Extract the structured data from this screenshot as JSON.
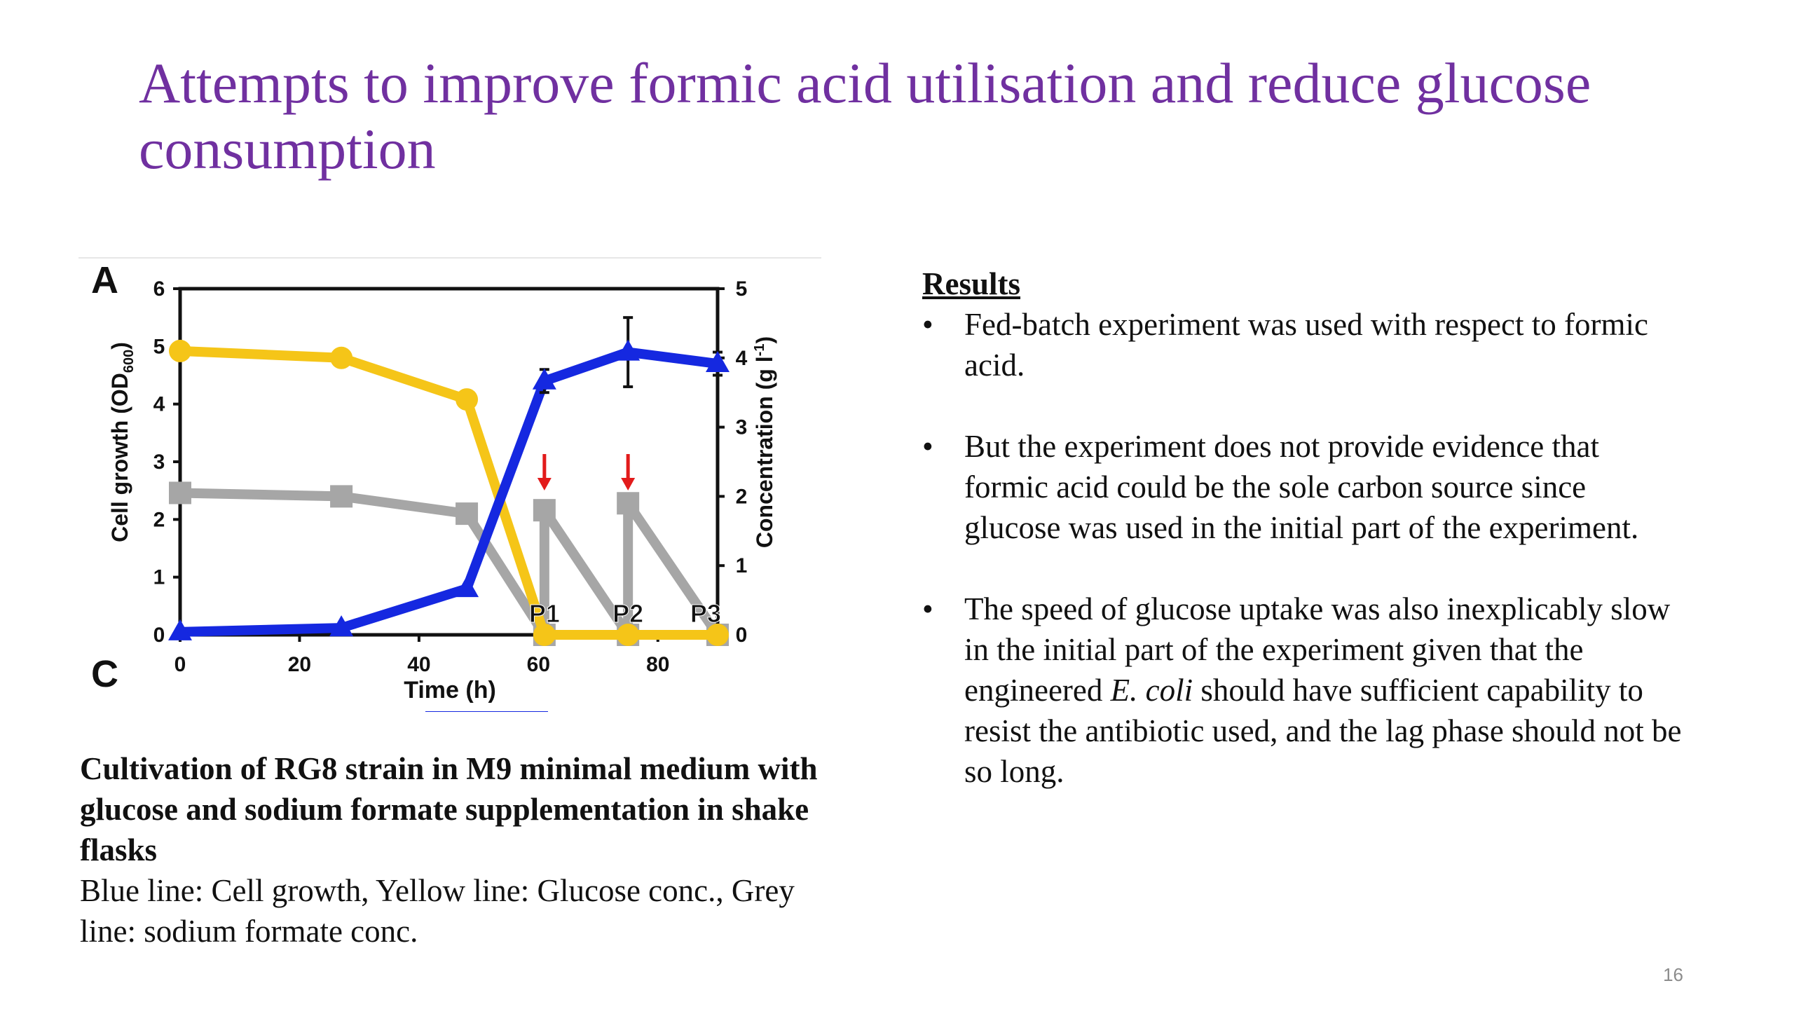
{
  "slide": {
    "title": "Attempts to improve formic acid utilisation and reduce glucose consumption",
    "page_number": "16"
  },
  "caption": {
    "bold": "Cultivation of RG8 strain in M9 minimal medium with glucose and sodium formate supplementation in shake flasks",
    "normal": "Blue line: Cell growth, Yellow line: Glucose conc., Grey line: sodium formate conc."
  },
  "results": {
    "heading": "Results",
    "bullets": [
      "Fed-batch experiment was used with respect to formic acid.",
      "But the experiment does not provide evidence that formic acid could be the sole carbon source since glucose was used in the initial part of the experiment.",
      ""
    ],
    "bullet3": {
      "before": "The speed of glucose uptake was also inexplicably slow in the initial part of the experiment given that the engineered ",
      "italic": "E. coli",
      "after": " should have sufficient capability to resist the antibiotic used, and the lag phase should not be so long."
    }
  },
  "chart_data": {
    "type": "line",
    "panel_labels": [
      "A",
      "C"
    ],
    "xlabel": "Time (h)",
    "ylabel_left": "Cell growth (OD600)",
    "ylabel_right": "Concentration (g l-1)",
    "xlim": [
      0,
      90
    ],
    "ylim_left": [
      0,
      6
    ],
    "ylim_right": [
      0,
      5
    ],
    "x_ticks": [
      "0",
      "20",
      "40",
      "60",
      "80"
    ],
    "y_ticks_left": [
      "0",
      "1",
      "2",
      "3",
      "4",
      "5",
      "6"
    ],
    "y_ticks_right": [
      "0",
      "1",
      "2",
      "3",
      "4",
      "5"
    ],
    "colors": {
      "blue": "#1528e0",
      "yellow": "#f5c518",
      "grey": "#a6a6a6",
      "arrow": "#e21b1b"
    },
    "series": [
      {
        "color": "blue",
        "axis": "left",
        "marker": "triangle",
        "x": [
          0,
          27,
          48,
          61,
          75,
          90
        ],
        "y": [
          0.05,
          0.12,
          0.8,
          4.4,
          4.9,
          4.7
        ],
        "error": [
          0,
          0,
          0,
          0.2,
          0.6,
          0.2
        ]
      },
      {
        "color": "yellow",
        "axis": "right",
        "marker": "circle",
        "x": [
          0,
          27,
          48,
          61,
          75,
          90
        ],
        "y": [
          4.1,
          4.0,
          3.4,
          0.0,
          0.0,
          0.0
        ]
      },
      {
        "color": "grey",
        "axis": "right",
        "marker": "square",
        "x": [
          0,
          27,
          48,
          61,
          61,
          75,
          75,
          90
        ],
        "y": [
          2.05,
          2.0,
          1.75,
          0.0,
          1.8,
          0.0,
          1.9,
          0.0
        ]
      }
    ],
    "annotations": [
      {
        "label": "P1",
        "x": 61
      },
      {
        "label": "P2",
        "x": 75
      },
      {
        "label": "P3",
        "x": 88
      }
    ],
    "arrows_at_x": [
      61,
      75
    ]
  }
}
